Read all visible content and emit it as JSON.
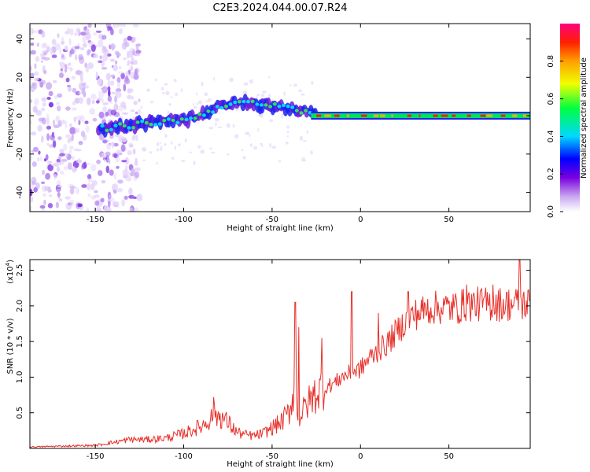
{
  "title": "C2E3.2024.044.00.07.R24",
  "colors": {
    "snr_line": "#e8302a",
    "axis": "#000000",
    "background": "#ffffff"
  },
  "chart_data": [
    {
      "type": "heatmap",
      "name": "spectrogram",
      "xlabel": "Height of straight line (km)",
      "ylabel": "Frequency (Hz)",
      "xlim": [
        -187,
        96
      ],
      "ylim": [
        -50,
        48
      ],
      "xticks": [
        -150,
        -100,
        -50,
        0,
        50
      ],
      "yticks": [
        -40,
        -20,
        0,
        20,
        40
      ],
      "colorbar": {
        "label": "Normalized spectral amplitude",
        "range": [
          0,
          1
        ],
        "ticks": [
          "0.0",
          "0.2",
          "0.4",
          "0.6",
          "0.8"
        ],
        "tick_values": [
          0,
          0.2,
          0.4,
          0.6,
          0.8
        ]
      },
      "ridge": [
        {
          "x": -148,
          "f": -7
        },
        {
          "x": -140,
          "f": -6
        },
        {
          "x": -130,
          "f": -5
        },
        {
          "x": -120,
          "f": -4
        },
        {
          "x": -110,
          "f": -3
        },
        {
          "x": -100,
          "f": -2
        },
        {
          "x": -90,
          "f": 0
        },
        {
          "x": -80,
          "f": 5
        },
        {
          "x": -70,
          "f": 7
        },
        {
          "x": -60,
          "f": 6
        },
        {
          "x": -50,
          "f": 5
        },
        {
          "x": -40,
          "f": 4
        },
        {
          "x": -30,
          "f": 2
        },
        {
          "x": -20,
          "f": 0
        },
        {
          "x": 0,
          "f": 0
        },
        {
          "x": 50,
          "f": 0
        },
        {
          "x": 94,
          "f": 0
        }
      ]
    },
    {
      "type": "line",
      "name": "snr",
      "xlabel": "Height of straight line (km)",
      "ylabel": "SNR (10 * v/v)",
      "yscale_note": "(x10",
      "yscale_exp": "4",
      "yscale_close": ")",
      "xlim": [
        -187,
        96
      ],
      "ylim": [
        0,
        2.65
      ],
      "xticks": [
        -150,
        -100,
        -50,
        0,
        50
      ],
      "yticks": [
        0.5,
        1.0,
        1.5,
        2.0,
        2.5
      ],
      "ytick_labels": [
        "0.5",
        "1.0",
        "1.5",
        "2.0",
        "2.5"
      ],
      "series": [
        {
          "name": "SNR",
          "x": [
            -187,
            -170,
            -150,
            -140,
            -130,
            -120,
            -110,
            -100,
            -95,
            -90,
            -85,
            -80,
            -75,
            -70,
            -65,
            -60,
            -55,
            -50,
            -45,
            -40,
            -37,
            -35,
            -30,
            -25,
            -20,
            -15,
            -10,
            -5,
            0,
            5,
            10,
            15,
            20,
            25,
            30,
            35,
            40,
            45,
            50,
            55,
            60,
            65,
            70,
            75,
            80,
            85,
            90,
            94,
            96
          ],
          "y": [
            0.02,
            0.03,
            0.04,
            0.08,
            0.12,
            0.12,
            0.14,
            0.2,
            0.25,
            0.3,
            0.4,
            0.45,
            0.35,
            0.22,
            0.18,
            0.17,
            0.2,
            0.28,
            0.35,
            0.5,
            0.9,
            0.4,
            0.6,
            0.75,
            0.85,
            0.9,
            1.0,
            1.05,
            1.1,
            1.25,
            1.35,
            1.45,
            1.6,
            1.75,
            1.85,
            1.9,
            1.95,
            1.95,
            1.95,
            1.95,
            2.0,
            2.0,
            2.0,
            2.0,
            2.0,
            2.0,
            2.0,
            2.0,
            2.0
          ],
          "spikes": [
            {
              "x": -83,
              "y": 0.72
            },
            {
              "x": -37,
              "y": 2.05
            },
            {
              "x": -35,
              "y": 1.7
            },
            {
              "x": -22,
              "y": 1.55
            },
            {
              "x": -5,
              "y": 2.2
            },
            {
              "x": 10,
              "y": 1.9
            },
            {
              "x": 27,
              "y": 2.2
            },
            {
              "x": 60,
              "y": 2.3
            },
            {
              "x": 75,
              "y": 2.3
            },
            {
              "x": 90,
              "y": 2.65
            }
          ]
        }
      ]
    }
  ]
}
